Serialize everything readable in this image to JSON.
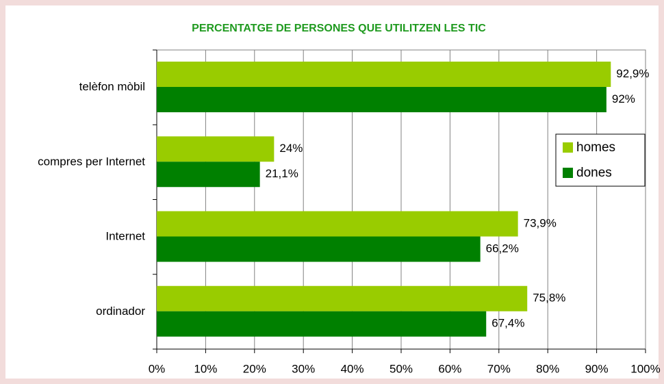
{
  "chart_data": {
    "type": "hbar",
    "title": "PERCENTATGE DE PERSONES QUE UTILITZEN LES TIC",
    "categories": [
      "telèfon mòbil",
      "compres per Internet",
      "Internet",
      "ordinador"
    ],
    "series": [
      {
        "name": "homes",
        "color": "#99cc00",
        "values": [
          92.9,
          24,
          73.9,
          75.8
        ],
        "value_labels": [
          "92,9%",
          "24%",
          "73,9%",
          "75,8%"
        ]
      },
      {
        "name": "dones",
        "color": "#008000",
        "values": [
          92,
          21.1,
          66.2,
          67.4
        ],
        "value_labels": [
          "92%",
          "21,1%",
          "66,2%",
          "67,4%"
        ]
      }
    ],
    "xlim": [
      0,
      100
    ],
    "xticks": [
      {
        "value": 0,
        "label": "0%"
      },
      {
        "value": 10,
        "label": "10%"
      },
      {
        "value": 20,
        "label": "20%"
      },
      {
        "value": 30,
        "label": "30%"
      },
      {
        "value": 40,
        "label": "40%"
      },
      {
        "value": 50,
        "label": "50%"
      },
      {
        "value": 60,
        "label": "60%"
      },
      {
        "value": 70,
        "label": "70%"
      },
      {
        "value": 80,
        "label": "80%"
      },
      {
        "value": 90,
        "label": "90%"
      },
      {
        "value": 100,
        "label": "100%"
      }
    ],
    "grid": true
  }
}
